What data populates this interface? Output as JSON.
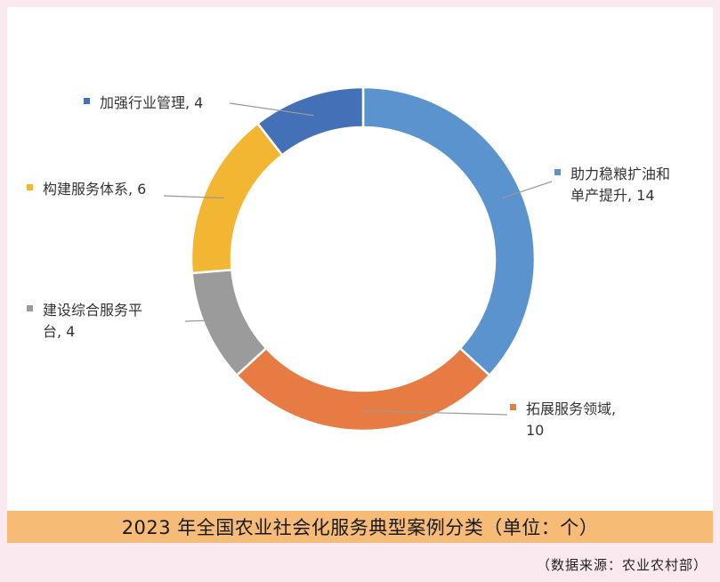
{
  "chart_data": {
    "type": "pie",
    "style": "donut",
    "slices": [
      {
        "label": "助力稳粮扩油和单产提升",
        "label_lines": [
          "助力稳粮扩油和",
          "单产提升, 14"
        ],
        "value": 14,
        "color": "#5a93cd"
      },
      {
        "label": "拓展服务领域",
        "label_lines": [
          "拓展服务领域,",
          "10"
        ],
        "value": 10,
        "color": "#e67c43"
      },
      {
        "label": "建设综合服务平台",
        "label_lines": [
          "建设综合服务平",
          "台, 4"
        ],
        "value": 4,
        "color": "#9b9b9b"
      },
      {
        "label": "构建服务体系",
        "label_lines": [
          "构建服务体系, 6"
        ],
        "value": 6,
        "color": "#f2b632"
      },
      {
        "label": "加强行业管理",
        "label_lines": [
          "加强行业管理, 4"
        ],
        "value": 4,
        "color": "#4470b7"
      }
    ],
    "title": "2023 年全国农业社会化服务典型案例分类（单位：个）"
  },
  "source": "（数据来源：农业农村部）"
}
